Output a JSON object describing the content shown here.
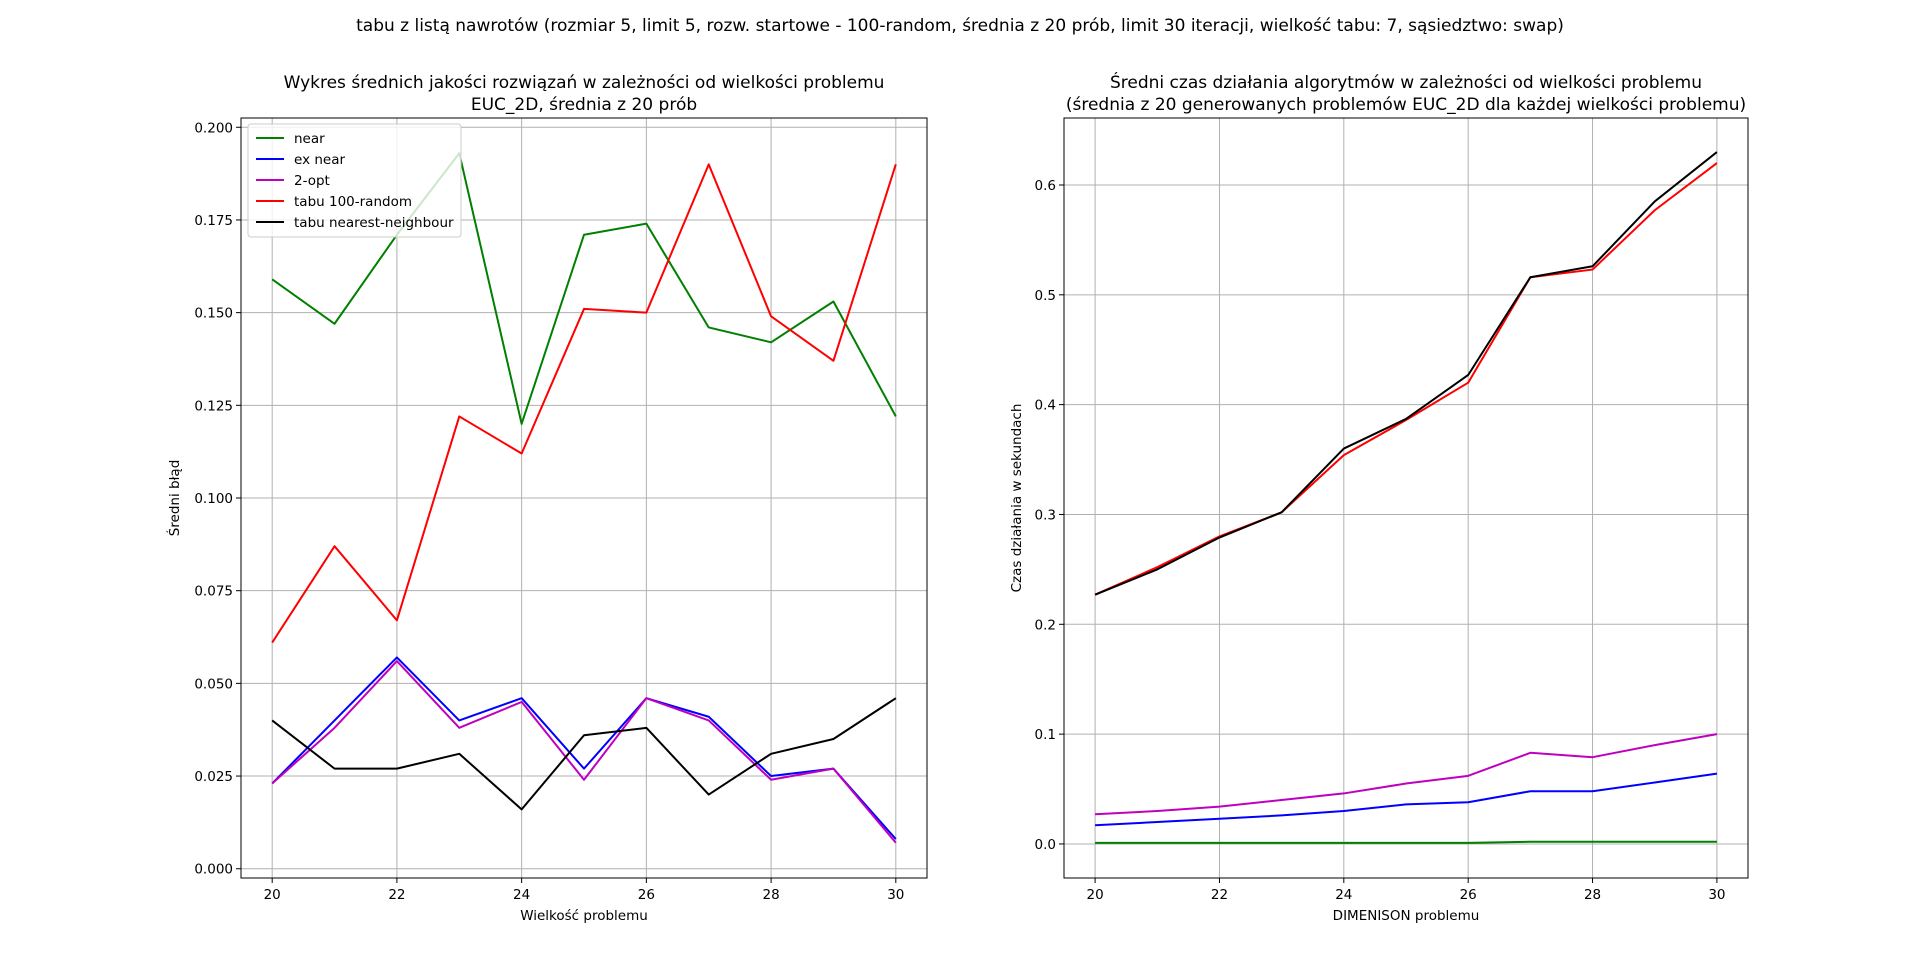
{
  "figure": {
    "suptitle": "tabu z listą nawrotów (rozmiar 5, limit 5, rozw. startowe - 100-random, średnia z 20 prób, limit 30 iteracji, wielkość tabu: 7, sąsiedztwo: swap)"
  },
  "colors": {
    "near": "#008000",
    "ex near": "#0000ff",
    "2-opt": "#bf00bf",
    "tabu 100-random": "#ff0000",
    "tabu nearest-neighbour": "#000000",
    "grid": "#b0b0b0"
  },
  "chart_data": [
    {
      "type": "line",
      "title": "Wykres średnich jakości rozwiązań w zależności od wielkości problemu",
      "subtitle": "EUC_2D, średnia z 20 prób",
      "xlabel": "Wielkość problemu",
      "ylabel": "Średni błąd",
      "xlim": [
        19.5,
        30.5
      ],
      "ylim": [
        -0.0025,
        0.2025
      ],
      "xticks": [
        20,
        22,
        24,
        26,
        28,
        30
      ],
      "xtick_labels": [
        "20",
        "22",
        "24",
        "26",
        "28",
        "30"
      ],
      "yticks": [
        0,
        0.025,
        0.05,
        0.075,
        0.1,
        0.125,
        0.15,
        0.175,
        0.2
      ],
      "ytick_labels": [
        "0.000",
        "0.025",
        "0.050",
        "0.075",
        "0.100",
        "0.125",
        "0.150",
        "0.175",
        "0.200"
      ],
      "grid": true,
      "legend": "top-left",
      "x": [
        20,
        21,
        22,
        23,
        24,
        25,
        26,
        27,
        28,
        29,
        30
      ],
      "series": [
        {
          "name": "near",
          "color": "#008000",
          "values": [
            0.159,
            0.147,
            0.171,
            0.193,
            0.12,
            0.171,
            0.174,
            0.146,
            0.142,
            0.153,
            0.122
          ]
        },
        {
          "name": "ex near",
          "color": "#0000ff",
          "values": [
            0.023,
            0.04,
            0.057,
            0.04,
            0.046,
            0.027,
            0.046,
            0.041,
            0.025,
            0.027,
            0.008
          ]
        },
        {
          "name": "2-opt",
          "color": "#bf00bf",
          "values": [
            0.023,
            0.038,
            0.056,
            0.038,
            0.045,
            0.024,
            0.046,
            0.04,
            0.024,
            0.027,
            0.007
          ]
        },
        {
          "name": "tabu 100-random",
          "color": "#ff0000",
          "values": [
            0.061,
            0.087,
            0.067,
            0.122,
            0.112,
            0.151,
            0.15,
            0.19,
            0.149,
            0.137,
            0.19
          ]
        },
        {
          "name": "tabu nearest-neighbour",
          "color": "#000000",
          "values": [
            0.04,
            0.027,
            0.027,
            0.031,
            0.016,
            0.036,
            0.038,
            0.02,
            0.031,
            0.035,
            0.046
          ]
        }
      ]
    },
    {
      "type": "line",
      "title": "Średni czas działania algorytmów w zależności od wielkości problemu",
      "subtitle": "(średnia z 20 generowanych problemów EUC_2D dla każdej wielkości problemu)",
      "xlabel": "DIMENISON problemu",
      "ylabel": "Czas działania w sekundach",
      "xlim": [
        19.5,
        30.5
      ],
      "ylim": [
        -0.031,
        0.661
      ],
      "xticks": [
        20,
        22,
        24,
        26,
        28,
        30
      ],
      "xtick_labels": [
        "20",
        "22",
        "24",
        "26",
        "28",
        "30"
      ],
      "yticks": [
        0,
        0.1,
        0.2,
        0.3,
        0.4,
        0.5,
        0.6
      ],
      "ytick_labels": [
        "0.0",
        "0.1",
        "0.2",
        "0.3",
        "0.4",
        "0.5",
        "0.6"
      ],
      "grid": true,
      "legend": "none",
      "x": [
        20,
        21,
        22,
        23,
        24,
        25,
        26,
        27,
        28,
        29,
        30
      ],
      "series": [
        {
          "color": "#008000",
          "values": [
            0.001,
            0.001,
            0.001,
            0.001,
            0.001,
            0.001,
            0.001,
            0.002,
            0.002,
            0.002,
            0.002
          ]
        },
        {
          "color": "#0000ff",
          "values": [
            0.017,
            0.02,
            0.023,
            0.026,
            0.03,
            0.036,
            0.038,
            0.048,
            0.048,
            0.056,
            0.064
          ]
        },
        {
          "color": "#bf00bf",
          "values": [
            0.027,
            0.03,
            0.034,
            0.04,
            0.046,
            0.055,
            0.062,
            0.083,
            0.079,
            0.09,
            0.1
          ]
        },
        {
          "color": "#ff0000",
          "values": [
            0.227,
            0.252,
            0.28,
            0.302,
            0.354,
            0.386,
            0.42,
            0.516,
            0.523,
            0.577,
            0.62
          ]
        },
        {
          "color": "#000000",
          "values": [
            0.227,
            0.25,
            0.279,
            0.302,
            0.36,
            0.387,
            0.427,
            0.516,
            0.526,
            0.585,
            0.63
          ]
        }
      ]
    }
  ]
}
